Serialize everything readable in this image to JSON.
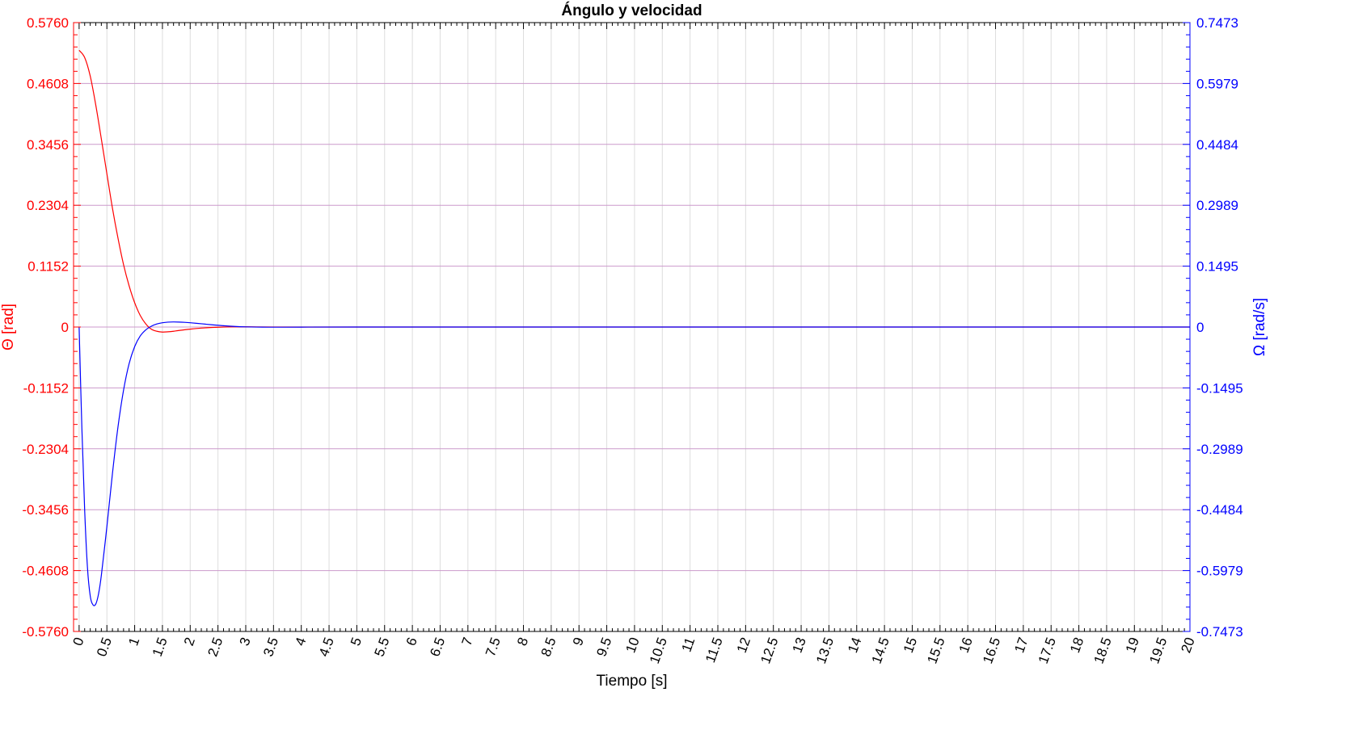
{
  "chart_data": {
    "type": "line",
    "title": "Ángulo y velocidad",
    "xlabel": "Tiempo [s]",
    "ylabel_left": "Θ [rad]",
    "ylabel_right": "Ω [rad/s]",
    "xlim": [
      -0.1,
      20
    ],
    "ylim_left": [
      -0.576,
      0.576
    ],
    "ylim_right": [
      -0.7473,
      0.7473
    ],
    "x_ticks": [
      "0",
      "0.5",
      "1",
      "1.5",
      "2",
      "2.5",
      "3",
      "3.5",
      "4",
      "4.5",
      "5",
      "5.5",
      "6",
      "6.5",
      "7",
      "7.5",
      "8",
      "8.5",
      "9",
      "9.5",
      "10",
      "10.5",
      "11",
      "11.5",
      "12",
      "12.5",
      "13",
      "13.5",
      "14",
      "14.5",
      "15",
      "15.5",
      "16",
      "16.5",
      "17",
      "17.5",
      "18",
      "18.5",
      "19",
      "19.5",
      "20"
    ],
    "y_ticks_left": [
      "0.5760",
      "0.4608",
      "0.3456",
      "0.2304",
      "0.1152",
      "0",
      "-0.1152",
      "-0.2304",
      "-0.3456",
      "-0.4608",
      "-0.5760"
    ],
    "y_ticks_right": [
      "0.7473",
      "0.5979",
      "0.4484",
      "0.2989",
      "0.1495",
      "0",
      "-0.1495",
      "-0.2989",
      "-0.4484",
      "-0.5979",
      "-0.7473"
    ],
    "grid": true,
    "colors": {
      "left_axis": "#ff0000",
      "right_axis": "#0000ff",
      "grid": "#cc99cc"
    },
    "series": [
      {
        "name": "Θ",
        "axis": "left",
        "color": "#ff0000",
        "x": [
          0,
          0.1,
          0.2,
          0.3,
          0.4,
          0.5,
          0.6,
          0.7,
          0.8,
          0.9,
          1.0,
          1.1,
          1.2,
          1.3,
          1.4,
          1.5,
          1.6,
          1.7,
          1.8,
          2.0,
          2.2,
          2.4,
          2.6,
          2.8,
          3.0,
          3.2,
          3.5,
          4.0,
          5.0,
          10.0,
          20.0
        ],
        "y": [
          0.5236,
          0.51,
          0.475,
          0.42,
          0.356,
          0.29,
          0.225,
          0.168,
          0.118,
          0.078,
          0.046,
          0.022,
          0.006,
          -0.004,
          -0.008,
          -0.0095,
          -0.009,
          -0.008,
          -0.0065,
          -0.004,
          -0.002,
          -0.0008,
          0.0,
          0.0003,
          0.0004,
          0.0003,
          0.0001,
          0.0,
          0.0,
          0.0,
          0.0
        ]
      },
      {
        "name": "Ω",
        "axis": "right",
        "color": "#0000ff",
        "x": [
          0,
          0.05,
          0.1,
          0.15,
          0.2,
          0.25,
          0.3,
          0.35,
          0.4,
          0.5,
          0.6,
          0.7,
          0.8,
          0.9,
          1.0,
          1.1,
          1.2,
          1.3,
          1.4,
          1.5,
          1.6,
          1.7,
          1.8,
          1.9,
          2.0,
          2.2,
          2.4,
          2.6,
          2.8,
          3.0,
          3.3,
          3.6,
          4.0,
          5.0,
          10.0,
          20.0
        ],
        "y": [
          0.0,
          -0.25,
          -0.45,
          -0.59,
          -0.66,
          -0.682,
          -0.68,
          -0.655,
          -0.61,
          -0.49,
          -0.36,
          -0.245,
          -0.155,
          -0.09,
          -0.048,
          -0.022,
          -0.007,
          0.002,
          0.0075,
          0.0105,
          0.012,
          0.0125,
          0.0122,
          0.0115,
          0.0105,
          0.008,
          0.0055,
          0.0032,
          0.0015,
          0.0004,
          -0.0003,
          -0.0004,
          -0.0002,
          0.0,
          0.0,
          0.0
        ]
      }
    ]
  }
}
